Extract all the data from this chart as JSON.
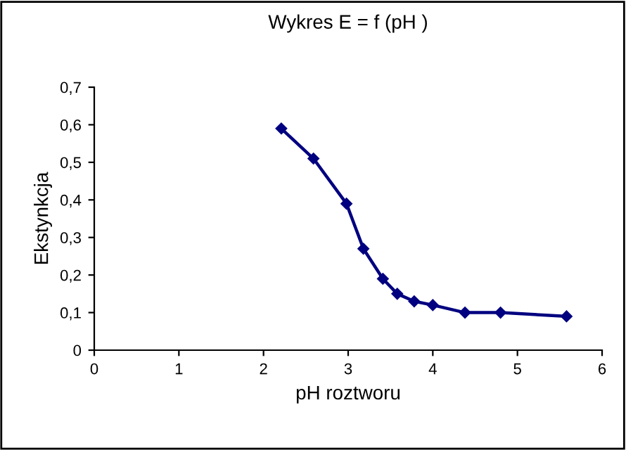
{
  "chart_data": {
    "type": "line",
    "title": "Wykres E = f (pH )",
    "xlabel": "pH roztworu",
    "ylabel": "Ekstynkcja",
    "series": [
      {
        "color": "#000080",
        "x": [
          2.21,
          2.59,
          2.98,
          3.18,
          3.41,
          3.58,
          3.78,
          4.0,
          4.38,
          4.8,
          5.58
        ],
        "values": [
          0.59,
          0.51,
          0.39,
          0.27,
          0.19,
          0.15,
          0.13,
          0.12,
          0.1,
          0.1,
          0.09
        ]
      }
    ],
    "xlim": [
      0,
      6
    ],
    "xticks": [
      0,
      1,
      2,
      3,
      4,
      5,
      6
    ],
    "ylim": [
      0,
      0.7
    ],
    "yticks": [
      0,
      {
        "value": 0.1,
        "label": "0,1"
      },
      {
        "value": 0.2,
        "label": "0,2"
      },
      {
        "value": 0.3,
        "label": "0,3"
      },
      {
        "value": 0.4,
        "label": "0,4"
      },
      {
        "value": 0.5,
        "label": "0,5"
      },
      {
        "value": 0.6,
        "label": "0,6"
      },
      {
        "value": 0.7,
        "label": "0,7"
      }
    ],
    "grid": false,
    "legend": false,
    "marker": "diamond",
    "line_style": "solid"
  }
}
